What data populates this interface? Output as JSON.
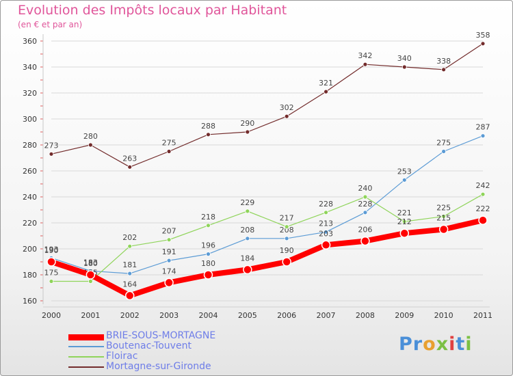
{
  "title": "Evolution des Impôts locaux par Habitant",
  "subtitle": "(en € et par an)",
  "logo": "Proxiti",
  "chart_data": {
    "type": "line",
    "title": "Evolution des Impôts locaux par Habitant",
    "ylabel": "(en € et par an)",
    "x": [
      "2000",
      "2001",
      "2002",
      "2003",
      "2004",
      "2005",
      "2006",
      "2007",
      "2008",
      "2009",
      "2010",
      "2011"
    ],
    "ylim": [
      160,
      360
    ],
    "yticks": [
      160,
      180,
      200,
      220,
      240,
      260,
      280,
      300,
      320,
      340,
      360
    ],
    "grid": true,
    "series": [
      {
        "name": "Mortagne-sur-Gironde",
        "color": "#722b2b",
        "values": [
          273,
          280,
          263,
          275,
          288,
          290,
          302,
          321,
          342,
          340,
          338,
          358
        ]
      },
      {
        "name": "Boutenac-Touvent",
        "color": "#5b9bd5",
        "values": [
          193,
          183,
          181,
          191,
          196,
          208,
          208,
          213,
          228,
          253,
          275,
          287
        ]
      },
      {
        "name": "Floirac",
        "color": "#8fd45a",
        "values": [
          175,
          175,
          202,
          207,
          218,
          229,
          217,
          228,
          240,
          221,
          225,
          242
        ]
      },
      {
        "name": "BRIE-SOUS-MORTAGNE",
        "color": "#ff0000",
        "values": [
          190,
          180,
          164,
          174,
          180,
          184,
          190,
          203,
          206,
          212,
          215,
          222
        ]
      }
    ]
  },
  "legend": [
    {
      "label": "BRIE-SOUS-MORTAGNE",
      "color": "#ff0000"
    },
    {
      "label": "Boutenac-Touvent",
      "color": "#5b9bd5"
    },
    {
      "label": "Floirac",
      "color": "#8fd45a"
    },
    {
      "label": "Mortagne-sur-Gironde",
      "color": "#722b2b"
    }
  ]
}
